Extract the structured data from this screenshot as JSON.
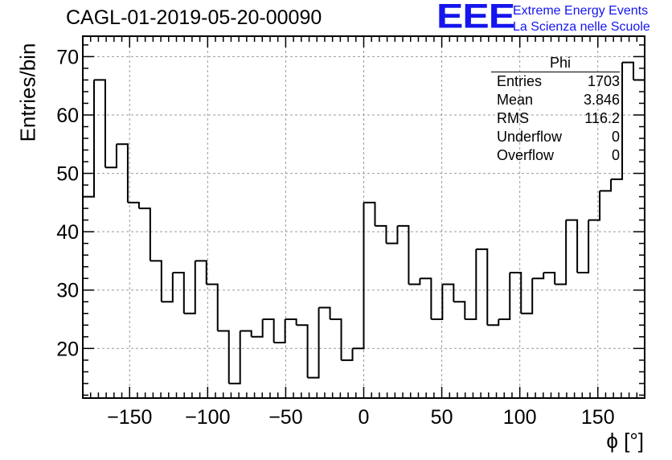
{
  "header": {
    "run_title": "CAGL-01-2019-05-20-00090",
    "logo_text": "EEE",
    "logo_line1": "Extreme Energy Events",
    "logo_line2": "La Scienza nelle Scuole",
    "logo_color": "#1515ee"
  },
  "stats_box": {
    "name": "Phi",
    "rows": [
      {
        "label": "Entries",
        "value": "1703"
      },
      {
        "label": "Mean",
        "value": "3.846"
      },
      {
        "label": "RMS",
        "value": "116.2"
      },
      {
        "label": "Underflow",
        "value": "0"
      },
      {
        "label": "Overflow",
        "value": "0"
      }
    ]
  },
  "chart_data": {
    "type": "bar",
    "histogram": "step",
    "title": "CAGL-01-2019-05-20-00090",
    "xlabel": "ϕ [°]",
    "ylabel": "Entries/bin",
    "xlim": [
      -180,
      180
    ],
    "ylim": [
      11.5,
      73.5
    ],
    "bin_width": 7.2,
    "x_ticks": [
      -150,
      -100,
      -50,
      0,
      50,
      100,
      150
    ],
    "x_tick_labels": [
      "−150",
      "−100",
      "−50",
      "0",
      "50",
      "100",
      "150"
    ],
    "y_ticks": [
      20,
      30,
      40,
      50,
      60,
      70
    ],
    "y_tick_labels": [
      "20",
      "30",
      "40",
      "50",
      "60",
      "70"
    ],
    "grid": true,
    "legend": "stats box top-right",
    "line_color": "#000000",
    "grid_color": "#999999",
    "values": [
      46,
      66,
      51,
      55,
      45,
      44,
      35,
      28,
      33,
      26,
      35,
      31,
      23,
      14,
      23,
      22,
      25,
      21,
      25,
      24,
      15,
      27,
      25,
      18,
      20,
      45,
      41,
      38,
      41,
      31,
      32,
      25,
      31,
      28,
      25,
      37,
      24,
      25,
      33,
      26,
      32,
      33,
      31,
      42,
      33,
      42,
      47,
      49,
      69,
      66
    ]
  }
}
